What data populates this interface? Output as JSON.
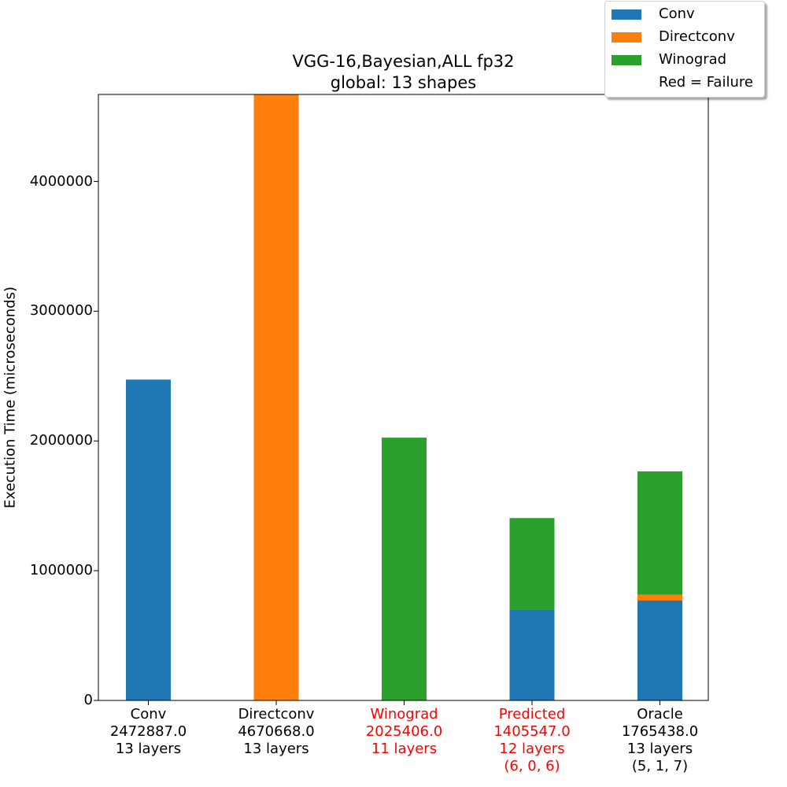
{
  "chart_data": {
    "type": "bar",
    "stacked": true,
    "title": "VGG-16,Bayesian,ALL fp32",
    "subtitle": "global: 13 shapes",
    "ylabel": "Execution Time (microseconds)",
    "xlabel": "",
    "ylim": [
      0,
      4670668
    ],
    "yticks": [
      "0",
      "1000000",
      "2000000",
      "3000000",
      "4000000"
    ],
    "categories": [
      {
        "lines": [
          "Conv",
          "2472887.0",
          "13 layers"
        ],
        "failure": false
      },
      {
        "lines": [
          "Directconv",
          "4670668.0",
          "13 layers"
        ],
        "failure": false
      },
      {
        "lines": [
          "Winograd",
          "2025406.0",
          "11 layers"
        ],
        "failure": true
      },
      {
        "lines": [
          "Predicted",
          "1405547.0",
          "12 layers",
          "(6, 0, 6)"
        ],
        "failure": true
      },
      {
        "lines": [
          "Oracle",
          "1765438.0",
          "13 layers",
          "(5, 1, 7)"
        ],
        "failure": false
      }
    ],
    "series": [
      {
        "name": "Conv",
        "color": "#1f77b4",
        "values": [
          2472887,
          0,
          0,
          700000,
          770000
        ]
      },
      {
        "name": "Directconv",
        "color": "#ff7f0e",
        "values": [
          0,
          4670668,
          0,
          0,
          45000
        ]
      },
      {
        "name": "Winograd",
        "color": "#2ca02c",
        "values": [
          0,
          0,
          2025406,
          705547,
          950438
        ]
      }
    ],
    "legend": {
      "placement": "top-right",
      "note": "Red = Failure"
    },
    "failure_color": "#ff0000"
  }
}
